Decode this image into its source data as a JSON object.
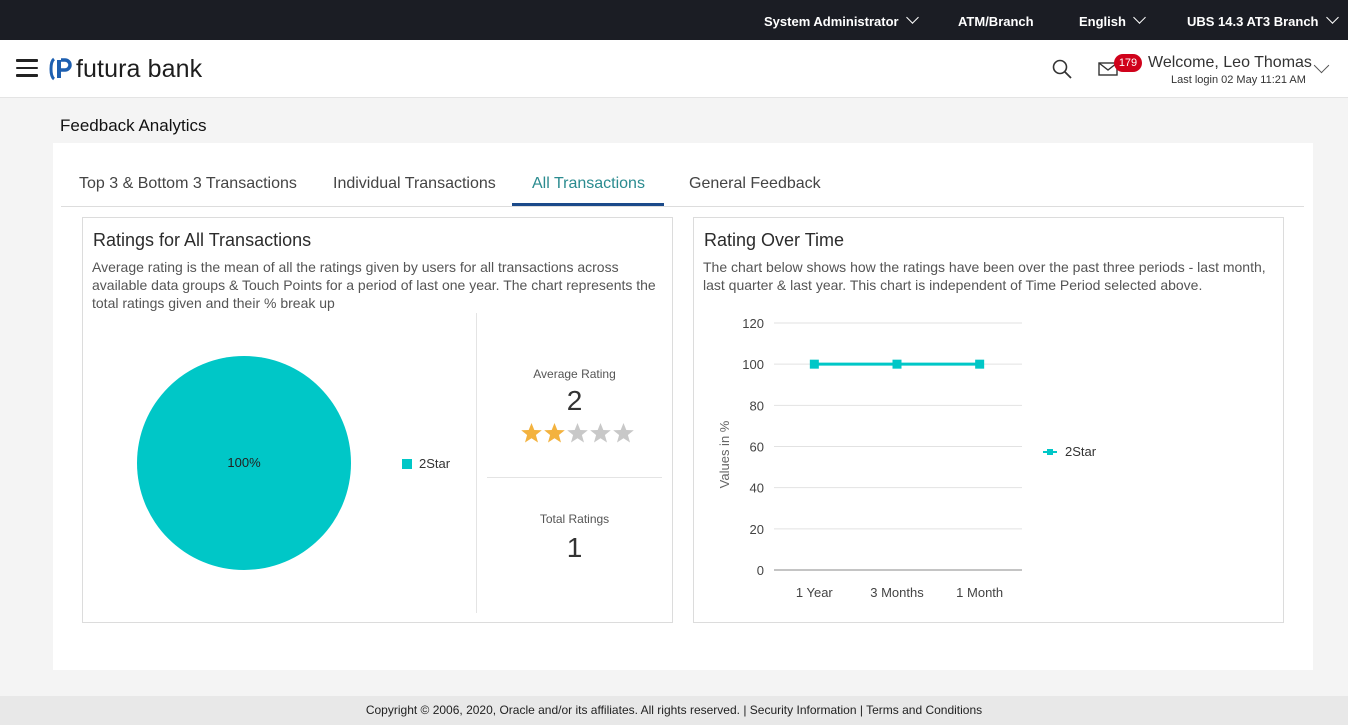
{
  "topbar": {
    "role": "System Administrator",
    "atm_branch": "ATM/Branch",
    "language": "English",
    "entity": "UBS 14.3 AT3 Branch"
  },
  "header": {
    "logo_text": "futura bank",
    "notification_count": "179",
    "welcome": "Welcome, Leo Thomas",
    "last_login": "Last login 02 May 11:21 AM"
  },
  "page": {
    "title": "Feedback Analytics"
  },
  "tabs": [
    {
      "label": "Top 3 & Bottom 3 Transactions",
      "active": false
    },
    {
      "label": "Individual Transactions",
      "active": false
    },
    {
      "label": "All Transactions",
      "active": true
    },
    {
      "label": "General Feedback",
      "active": false
    }
  ],
  "ratings_panel": {
    "title": "Ratings for All Transactions",
    "description": "Average rating is the mean of all the ratings given by users for all transactions across available data groups & Touch Points for a period of last one year. The chart represents the total ratings given and their % break up",
    "average_rating_label": "Average Rating",
    "average_rating_value": "2",
    "stars_filled": 2,
    "stars_total": 5,
    "total_ratings_label": "Total Ratings",
    "total_ratings_value": "1"
  },
  "over_time_panel": {
    "title": "Rating Over Time",
    "description": "The chart below shows how the ratings have been over the past three periods - last month, last quarter & last year. This chart is independent of Time Period selected above."
  },
  "colors": {
    "series": "#00c7c7",
    "accent_tab": "#2a8b8f",
    "tab_underline": "#1b4a8a",
    "badge": "#d0021b",
    "star_filled": "#f3b23e",
    "star_empty": "#c8c8c8"
  },
  "chart_data": [
    {
      "type": "pie",
      "categories": [
        "2Star"
      ],
      "values": [
        100
      ],
      "data_labels": [
        "100%"
      ],
      "legend": "right"
    },
    {
      "type": "line",
      "categories": [
        "1 Year",
        "3 Months",
        "1 Month"
      ],
      "series": [
        {
          "name": "2Star",
          "values": [
            100,
            100,
            100
          ]
        }
      ],
      "ylabel": "Values in %",
      "ylim": [
        0,
        120
      ],
      "yticks": [
        0,
        20,
        40,
        60,
        80,
        100,
        120
      ],
      "grid": true,
      "legend": "right"
    }
  ],
  "footer": {
    "copyright": "Copyright © 2006, 2020, Oracle and/or its affiliates. All rights reserved.",
    "security_link": "Security Information",
    "terms_link": "Terms and Conditions"
  }
}
